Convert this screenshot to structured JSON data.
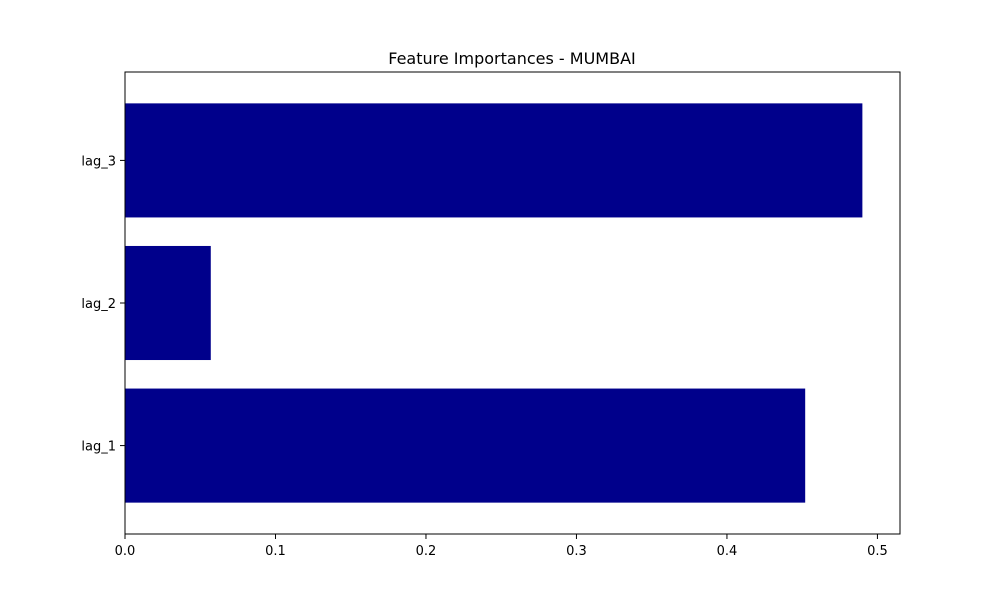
{
  "chart_data": {
    "type": "bar",
    "orientation": "horizontal",
    "title": "Feature Importances - MUMBAI",
    "xlabel": "",
    "ylabel": "",
    "categories": [
      "lag_1",
      "lag_2",
      "lag_3"
    ],
    "values": [
      0.452,
      0.057,
      0.49
    ],
    "xlim": [
      0,
      0.515
    ],
    "xticks": [
      0.0,
      0.1,
      0.2,
      0.3,
      0.4,
      0.5
    ],
    "xtick_labels": [
      "0.0",
      "0.1",
      "0.2",
      "0.3",
      "0.4",
      "0.5"
    ],
    "bar_color": "#00008b",
    "grid": false,
    "legend": "none"
  }
}
